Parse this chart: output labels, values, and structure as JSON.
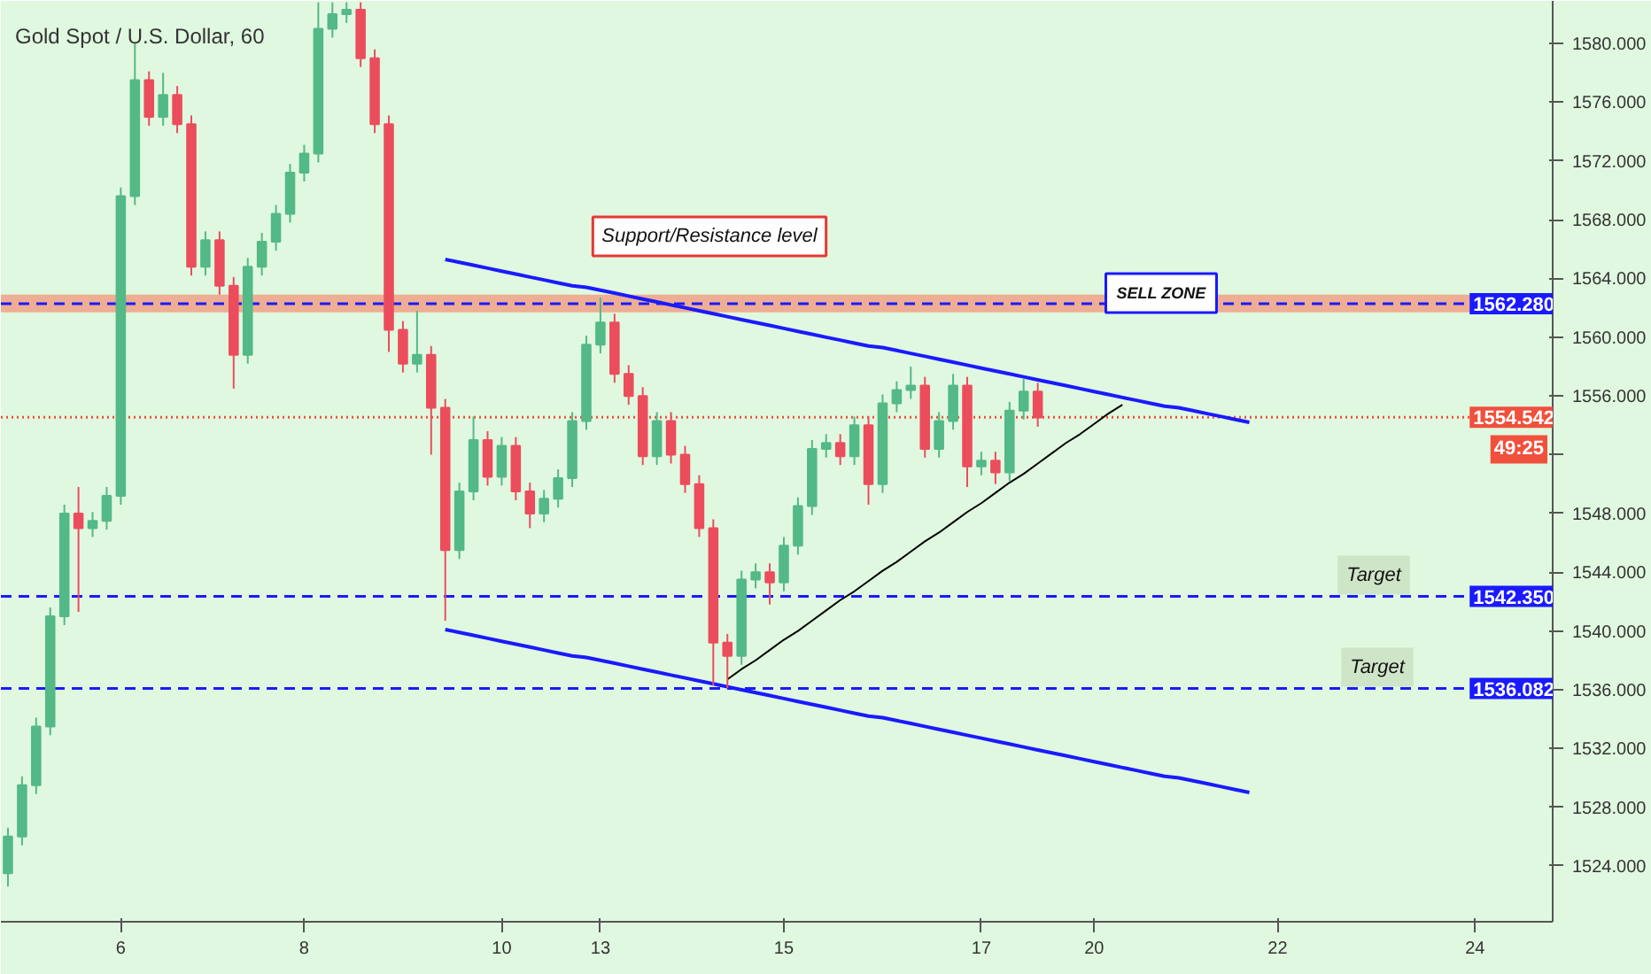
{
  "chart_data": {
    "type": "candlestick",
    "title": "Gold Spot / U.S. Dollar, 60",
    "categories": [
      null,
      null,
      null,
      null,
      null,
      null,
      null,
      null,
      "6",
      null,
      null,
      null,
      null,
      null,
      null,
      null,
      null,
      null,
      null,
      null,
      null,
      "8",
      null,
      null,
      null,
      null,
      null,
      null,
      null,
      null,
      null,
      null,
      null,
      null,
      null,
      "10",
      null,
      null,
      null,
      null,
      null,
      null,
      "13",
      null,
      null,
      null,
      null,
      null,
      null,
      null,
      null,
      null,
      null,
      null,
      null,
      "15",
      null,
      null,
      null,
      null,
      null,
      null,
      null,
      null,
      null,
      null,
      null,
      null,
      null,
      "17",
      null,
      null,
      null,
      null,
      null,
      null,
      null,
      "20",
      null,
      null,
      null,
      null,
      null,
      null,
      null,
      null,
      null,
      null,
      null,
      null,
      "22",
      null,
      null,
      null,
      null,
      null,
      null,
      null,
      null,
      null,
      null,
      null,
      null,
      null,
      "24",
      null,
      null,
      null,
      null,
      null
    ],
    "ohlc": [
      [
        1523.5,
        1526.6,
        1522.6,
        1526
      ],
      [
        1526,
        1530.1,
        1525.4,
        1529.5
      ],
      [
        1529.5,
        1534.1,
        1528.9,
        1533.5
      ],
      [
        1533.5,
        1541.6,
        1532.9,
        1541
      ],
      [
        1541,
        1548.6,
        1540.4,
        1548
      ],
      [
        1548,
        1549.8,
        1541.3,
        1547
      ],
      [
        1547,
        1548.1,
        1546.4,
        1547.5
      ],
      [
        1547.5,
        1549.8,
        1546.9,
        1549.2
      ],
      [
        1549.2,
        1570.2,
        1548.6,
        1569.6
      ],
      [
        1569.6,
        1580,
        1569,
        1577.5
      ],
      [
        1577.5,
        1578.1,
        1574.4,
        1575
      ],
      [
        1575,
        1578,
        1574.4,
        1576.5
      ],
      [
        1576.5,
        1577.1,
        1573.9,
        1574.5
      ],
      [
        1574.5,
        1575.1,
        1564.2,
        1564.8
      ],
      [
        1564.8,
        1567.2,
        1564.2,
        1566.6
      ],
      [
        1566.6,
        1567.2,
        1562.9,
        1563.5
      ],
      [
        1563.5,
        1564.1,
        1556.5,
        1558.8
      ],
      [
        1558.8,
        1565.4,
        1558.2,
        1564.8
      ],
      [
        1564.8,
        1567.1,
        1564.2,
        1566.5
      ],
      [
        1566.5,
        1569,
        1565.9,
        1568.4
      ],
      [
        1568.4,
        1571.8,
        1567.8,
        1571.2
      ],
      [
        1571.2,
        1573.1,
        1570.6,
        1572.5
      ],
      [
        1572.5,
        1582.8,
        1571.9,
        1581
      ],
      [
        1581,
        1582.8,
        1580.4,
        1582
      ],
      [
        1582,
        1582.8,
        1581.4,
        1582.3
      ],
      [
        1582.3,
        1582.8,
        1578.4,
        1579
      ],
      [
        1579,
        1579.6,
        1573.9,
        1574.5
      ],
      [
        1574.5,
        1575.1,
        1559,
        1560.5
      ],
      [
        1560.5,
        1561.1,
        1557.6,
        1558.2
      ],
      [
        1558.2,
        1561.8,
        1557.6,
        1558.8
      ],
      [
        1558.8,
        1559.4,
        1552,
        1555.2
      ],
      [
        1555.2,
        1555.8,
        1540.7,
        1545.5
      ],
      [
        1545.5,
        1550.1,
        1544.9,
        1549.5
      ],
      [
        1549.5,
        1554.6,
        1548.9,
        1553
      ],
      [
        1553,
        1553.6,
        1549.9,
        1550.5
      ],
      [
        1550.5,
        1553.2,
        1549.9,
        1552.6
      ],
      [
        1552.6,
        1553.2,
        1548.9,
        1549.5
      ],
      [
        1549.5,
        1550.1,
        1547,
        1548
      ],
      [
        1548,
        1549.6,
        1547.4,
        1549
      ],
      [
        1549,
        1551,
        1548.4,
        1550.4
      ],
      [
        1550.4,
        1554.9,
        1549.8,
        1554.3
      ],
      [
        1554.3,
        1560.1,
        1553.7,
        1559.5
      ],
      [
        1559.5,
        1562.7,
        1558.9,
        1561
      ],
      [
        1561,
        1561.6,
        1556.9,
        1557.5
      ],
      [
        1557.5,
        1558.1,
        1555.4,
        1556
      ],
      [
        1556,
        1556.6,
        1551.3,
        1551.9
      ],
      [
        1551.9,
        1554.9,
        1551.3,
        1554.3
      ],
      [
        1554.3,
        1554.9,
        1551.4,
        1552
      ],
      [
        1552,
        1552.6,
        1549.4,
        1550
      ],
      [
        1550,
        1550.6,
        1546.4,
        1547
      ],
      [
        1547,
        1547.6,
        1536.3,
        1539.2
      ],
      [
        1539.2,
        1539.8,
        1536.1,
        1538.3
      ],
      [
        1538.3,
        1544.1,
        1537.7,
        1543.5
      ],
      [
        1543.5,
        1544.6,
        1542.9,
        1544
      ],
      [
        1544,
        1544.6,
        1541.8,
        1543.3
      ],
      [
        1543.3,
        1546.4,
        1542.7,
        1545.8
      ],
      [
        1545.8,
        1549.1,
        1545.2,
        1548.5
      ],
      [
        1548.5,
        1553,
        1547.9,
        1552.4
      ],
      [
        1552.4,
        1553.4,
        1551.8,
        1552.8
      ],
      [
        1552.8,
        1553.4,
        1551.3,
        1551.9
      ],
      [
        1551.9,
        1554.6,
        1551.3,
        1554
      ],
      [
        1554,
        1554.6,
        1548.6,
        1550
      ],
      [
        1550,
        1556.1,
        1549.4,
        1555.5
      ],
      [
        1555.5,
        1557,
        1554.9,
        1556.4
      ],
      [
        1556.4,
        1558,
        1555.8,
        1556.7
      ],
      [
        1556.7,
        1557.3,
        1551.8,
        1552.4
      ],
      [
        1552.4,
        1554.9,
        1551.8,
        1554.3
      ],
      [
        1554.3,
        1557.5,
        1553.7,
        1556.7
      ],
      [
        1556.7,
        1557.3,
        1549.8,
        1551.2
      ],
      [
        1551.2,
        1552.2,
        1550.6,
        1551.6
      ],
      [
        1551.6,
        1552.2,
        1550,
        1550.8
      ],
      [
        1550.8,
        1555.6,
        1550.2,
        1555
      ],
      [
        1555,
        1557.2,
        1554.4,
        1556.3
      ],
      [
        1556.3,
        1556.9,
        1553.9,
        1554.54
      ],
      null,
      null,
      null,
      null,
      null,
      null,
      null,
      null,
      null,
      null,
      null,
      null,
      null,
      null,
      null,
      null,
      null,
      null,
      null,
      null,
      null,
      null,
      null,
      null,
      null,
      null,
      null,
      null,
      null,
      null,
      null,
      null,
      null,
      null,
      null,
      null
    ],
    "colors": [
      "#53b987",
      "#53b987",
      "#53b987",
      "#53b987",
      "#53b987",
      "#eb4d5c",
      "#53b987",
      "#53b987",
      "#53b987",
      "#53b987",
      "#eb4d5c",
      "#53b987",
      "#eb4d5c",
      "#eb4d5c",
      "#53b987",
      "#eb4d5c",
      "#eb4d5c",
      "#53b987",
      "#53b987",
      "#53b987",
      "#53b987",
      "#53b987",
      "#53b987",
      "#53b987",
      "#53b987",
      "#eb4d5c",
      "#eb4d5c",
      "#eb4d5c",
      "#eb4d5c",
      "#53b987",
      "#eb4d5c",
      "#eb4d5c",
      "#53b987",
      "#53b987",
      "#eb4d5c",
      "#53b987",
      "#eb4d5c",
      "#eb4d5c",
      "#53b987",
      "#53b987",
      "#53b987",
      "#53b987",
      "#53b987",
      "#eb4d5c",
      "#eb4d5c",
      "#eb4d5c",
      "#53b987",
      "#eb4d5c",
      "#eb4d5c",
      "#eb4d5c",
      "#eb4d5c",
      "#eb4d5c",
      "#53b987",
      "#53b987",
      "#eb4d5c",
      "#53b987",
      "#53b987",
      "#53b987",
      "#53b987",
      "#eb4d5c",
      "#53b987",
      "#eb4d5c",
      "#53b987",
      "#53b987",
      "#53b987",
      "#eb4d5c",
      "#53b987",
      "#53b987",
      "#eb4d5c",
      "#53b987",
      "#eb4d5c",
      "#53b987",
      "#53b987",
      "#eb4d5c",
      null,
      null,
      null,
      null,
      null,
      null,
      null,
      null,
      null,
      null,
      null,
      null,
      null,
      null,
      null,
      null,
      null,
      null,
      null,
      null,
      null,
      null,
      null,
      null,
      null,
      null,
      null,
      null,
      null,
      null,
      null,
      null,
      null,
      null,
      null,
      null
    ],
    "series": [
      {
        "type": "line",
        "color": "#1a1aff",
        "values": [
          null,
          null,
          null,
          null,
          null,
          null,
          null,
          null,
          null,
          null,
          null,
          null,
          null,
          null,
          null,
          null,
          null,
          null,
          null,
          null,
          null,
          null,
          null,
          null,
          null,
          null,
          null,
          null,
          null,
          null,
          null,
          1565.3,
          1565.1,
          1564.9,
          1564.7,
          1564.5,
          1564.3,
          1564.1,
          1563.9,
          1563.7,
          1563.5,
          1563.4,
          1563.2,
          1563.0,
          1562.8,
          1562.6,
          1562.4,
          1562.2,
          1562.0,
          1561.8,
          1561.6,
          1561.4,
          1561.2,
          1561.0,
          1560.8,
          1560.6,
          1560.4,
          1560.2,
          1560.0,
          1559.8,
          1559.6,
          1559.4,
          1559.3,
          1559.1,
          1558.9,
          1558.7,
          1558.5,
          1558.3,
          1558.1,
          1557.9,
          1557.7,
          1557.5,
          1557.3,
          1557.1,
          1556.9,
          1556.7,
          1556.5,
          1556.3,
          1556.1,
          1555.9,
          1555.7,
          1555.5,
          1555.3,
          1555.2,
          1555.0,
          1554.8,
          1554.6,
          1554.4,
          1554.2,
          null,
          null,
          null,
          null,
          null,
          null,
          null,
          null,
          null,
          null,
          null,
          null,
          null,
          null,
          null,
          null,
          null,
          null,
          null,
          null,
          null
        ]
      },
      {
        "type": "line",
        "color": "#1a1aff",
        "values": [
          null,
          null,
          null,
          null,
          null,
          null,
          null,
          null,
          null,
          null,
          null,
          null,
          null,
          null,
          null,
          null,
          null,
          null,
          null,
          null,
          null,
          null,
          null,
          null,
          null,
          null,
          null,
          null,
          null,
          null,
          null,
          1540.1,
          1539.9,
          1539.7,
          1539.5,
          1539.3,
          1539.1,
          1538.9,
          1538.7,
          1538.5,
          1538.3,
          1538.2,
          1538.0,
          1537.8,
          1537.6,
          1537.4,
          1537.2,
          1537.0,
          1536.8,
          1536.6,
          1536.4,
          1536.2,
          1536.0,
          1535.8,
          1535.6,
          1535.4,
          1535.2,
          1535.0,
          1534.8,
          1534.6,
          1534.4,
          1534.2,
          1534.1,
          1533.9,
          1533.7,
          1533.5,
          1533.3,
          1533.1,
          1532.9,
          1532.7,
          1532.5,
          1532.3,
          1532.1,
          1531.9,
          1531.7,
          1531.5,
          1531.3,
          1531.1,
          1530.9,
          1530.7,
          1530.5,
          1530.3,
          1530.1,
          1530.0,
          1529.8,
          1529.6,
          1529.4,
          1529.2,
          1529.0,
          null,
          null,
          null,
          null,
          null,
          null,
          null,
          null,
          null,
          null,
          null,
          null,
          null,
          null,
          null,
          null,
          null,
          null,
          null,
          null,
          null
        ]
      },
      {
        "type": "line",
        "color": "#000000",
        "values": [
          null,
          null,
          null,
          null,
          null,
          null,
          null,
          null,
          null,
          null,
          null,
          null,
          null,
          null,
          null,
          null,
          null,
          null,
          null,
          null,
          null,
          null,
          null,
          null,
          null,
          null,
          null,
          null,
          null,
          null,
          null,
          null,
          null,
          null,
          null,
          null,
          null,
          null,
          null,
          null,
          null,
          null,
          null,
          null,
          null,
          null,
          null,
          null,
          null,
          null,
          null,
          1536.7,
          1537.4,
          1538.0,
          1538.7,
          1539.4,
          1540.0,
          1540.7,
          1541.4,
          1542.1,
          1542.7,
          1543.4,
          1544.1,
          1544.7,
          1545.4,
          1546.1,
          1546.7,
          1547.4,
          1548.1,
          1548.7,
          1549.4,
          1550.1,
          1550.7,
          1551.4,
          1552.1,
          1552.8,
          1553.4,
          1554.1,
          1554.8,
          1555.4,
          null,
          null,
          null,
          null,
          null,
          null,
          null,
          null,
          null,
          null,
          null,
          null,
          null,
          null,
          null,
          null,
          null,
          null,
          null,
          null,
          null,
          null,
          null,
          null,
          null,
          null,
          null,
          null,
          null,
          null
        ]
      }
    ],
    "ylim": [
      1520.2,
      1582.9
    ],
    "yticks": [
      {
        "value": 1524,
        "label": "1524.000"
      },
      {
        "value": 1528,
        "label": "1528.000"
      },
      {
        "value": 1532,
        "label": "1532.000"
      },
      {
        "value": 1536,
        "label": "1536.000"
      },
      {
        "value": 1540,
        "label": "1540.000"
      },
      {
        "value": 1544,
        "label": "1544.000"
      },
      {
        "value": 1548,
        "label": "1548.000"
      },
      {
        "value": 1552,
        "label": null
      },
      {
        "value": 1556,
        "label": "1556.000"
      },
      {
        "value": 1560,
        "label": "1560.000"
      },
      {
        "value": 1564,
        "label": "1564.000"
      },
      {
        "value": 1568,
        "label": "1568.000"
      },
      {
        "value": 1572,
        "label": "1572.000"
      },
      {
        "value": 1576,
        "label": "1576.000"
      },
      {
        "value": 1580,
        "label": "1580.000"
      }
    ],
    "bands": [
      {
        "axis": "y",
        "from": 1561.7,
        "to": 1562.9,
        "color": "#f0a58c"
      }
    ],
    "ref_lines": [
      {
        "axis": "y",
        "value": 1562.28,
        "label": "1562.280",
        "color": "#1a1aff",
        "line_style": "dashed"
      },
      {
        "axis": "y",
        "value": 1554.542,
        "label": "1554.542",
        "color": "#f0503c",
        "line_style": "dotted"
      },
      {
        "axis": "y",
        "value": 1542.35,
        "label": "1542.350",
        "color": "#1a1aff",
        "line_style": "dashed"
      },
      {
        "axis": "y",
        "value": 1536.082,
        "label": "1536.082",
        "color": "#1a1aff",
        "line_style": "dashed"
      }
    ],
    "annotations": [
      {
        "text": "Support/Resistance level",
        "y": 1562.28
      },
      {
        "text": "Target",
        "y": 1542.35
      },
      {
        "text": "Target",
        "y": 1536.082
      },
      "SELL ZONE",
      "49:25"
    ]
  }
}
